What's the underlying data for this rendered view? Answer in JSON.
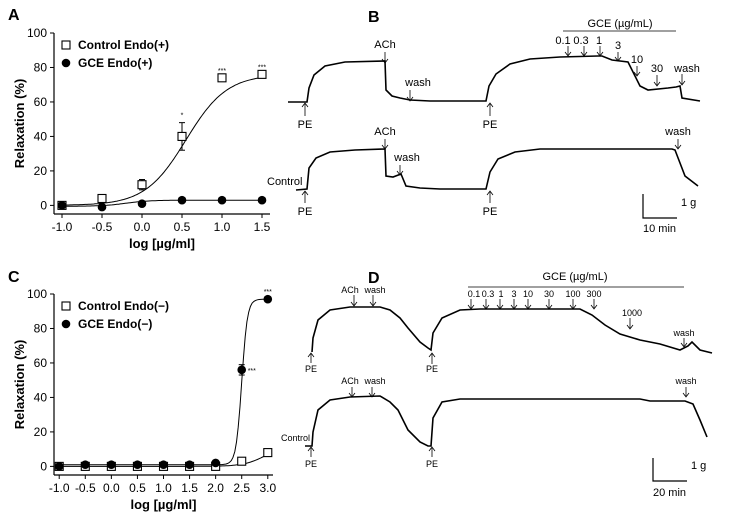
{
  "panel_letters": [
    "A",
    "B",
    "C",
    "D"
  ],
  "chart_data": [
    {
      "type": "scatter",
      "panel": "A",
      "xlabel": "log [µg/ml]",
      "ylabel": "Relaxation (%)",
      "xlim": [
        -1.1,
        1.6
      ],
      "ylim": [
        -5,
        100
      ],
      "xticks": [
        -1.0,
        -0.5,
        0.0,
        0.5,
        1.0,
        1.5
      ],
      "xtick_labels": [
        "-1.0",
        "-0.5",
        "0.0",
        "0.5",
        "1.0",
        "1.5"
      ],
      "yticks": [
        0,
        20,
        40,
        60,
        80,
        100
      ],
      "ytick_labels": [
        "0",
        "20",
        "40",
        "60",
        "80",
        "100"
      ],
      "legend_position": "top-left",
      "series": [
        {
          "name": "Control Endo(+)",
          "marker": "open-square",
          "x": [
            -1.0,
            -0.5,
            0.0,
            0.5,
            1.0,
            1.5
          ],
          "values": [
            0,
            4,
            12,
            40,
            74,
            76
          ],
          "errors": [
            0,
            0,
            3,
            8,
            0,
            0
          ],
          "fit": {
            "bottom": 0,
            "top": 76,
            "ec50": 0.55,
            "hill": 1.7
          },
          "annotations": [
            {
              "x": 0.5,
              "text": "*"
            },
            {
              "x": 1.0,
              "text": "***"
            },
            {
              "x": 1.5,
              "text": "***"
            }
          ]
        },
        {
          "name": "GCE Endo(+)",
          "marker": "filled-circle",
          "x": [
            -1.0,
            -0.5,
            0.0,
            0.5,
            1.0,
            1.5
          ],
          "values": [
            0,
            -1,
            1,
            3,
            3,
            3
          ],
          "errors": [
            0,
            0,
            0,
            0,
            0,
            0
          ],
          "fit": {
            "bottom": -0.5,
            "top": 3,
            "ec50": -0.2,
            "hill": 3
          }
        }
      ]
    },
    {
      "type": "scatter",
      "panel": "C",
      "xlabel": "log [µg/ml]",
      "ylabel": "Relaxation (%)",
      "xlim": [
        -1.1,
        3.1
      ],
      "ylim": [
        -5,
        100
      ],
      "xticks": [
        -1.0,
        -0.5,
        0.0,
        0.5,
        1.0,
        1.5,
        2.0,
        2.5,
        3.0
      ],
      "xtick_labels": [
        "-1.0",
        "-0.5",
        "0.0",
        "0.5",
        "1.0",
        "1.5",
        "2.0",
        "2.5",
        "3.0"
      ],
      "yticks": [
        0,
        20,
        40,
        60,
        80,
        100
      ],
      "ytick_labels": [
        "0",
        "20",
        "40",
        "60",
        "80",
        "100"
      ],
      "legend_position": "top-left",
      "series": [
        {
          "name": "Control Endo(−)",
          "marker": "open-square",
          "x": [
            -1.0,
            -0.5,
            0.0,
            0.5,
            1.0,
            1.5,
            2.0,
            2.5,
            3.0
          ],
          "values": [
            0,
            0,
            0,
            0,
            0,
            0,
            0,
            3,
            8
          ],
          "errors": [
            0,
            0,
            0,
            0,
            0,
            0,
            0,
            0,
            0
          ],
          "fit": {
            "bottom": 0,
            "top": 14,
            "ec50": 3.0,
            "hill": 2
          }
        },
        {
          "name": "GCE Endo(−)",
          "marker": "filled-circle",
          "x": [
            -1.0,
            -0.5,
            0.0,
            0.5,
            1.0,
            1.5,
            2.0,
            2.5,
            3.0
          ],
          "values": [
            0,
            1,
            1,
            1,
            1,
            1,
            2,
            56,
            97
          ],
          "errors": [
            0,
            0,
            0,
            0,
            0,
            0,
            0,
            3,
            0
          ],
          "fit": {
            "bottom": 1,
            "top": 97,
            "ec50": 2.5,
            "hill": 8
          },
          "annotations": [
            {
              "x": 2.5,
              "text": "***"
            },
            {
              "x": 3.0,
              "text": "***"
            }
          ]
        }
      ]
    }
  ],
  "traces": {
    "B": {
      "top_labels": [
        "PE",
        "ACh",
        "wash",
        "PE",
        "0.1",
        "0.3",
        "1",
        "3",
        "10",
        "30",
        "wash"
      ],
      "gce_header": "GCE (µg/mL)",
      "bottom_labels": [
        "Control",
        "PE",
        "ACh",
        "wash",
        "PE",
        "wash"
      ],
      "scale_y": "1 g",
      "scale_x": "10 min"
    },
    "D": {
      "top_labels": [
        "PE",
        "ACh",
        "wash",
        "PE",
        "0.1",
        "0.3",
        "1",
        "3",
        "10",
        "30",
        "100",
        "300",
        "1000",
        "wash"
      ],
      "gce_header": "GCE (µg/mL)",
      "bottom_labels": [
        "Control",
        "PE",
        "ACh",
        "wash",
        "PE",
        "wash"
      ],
      "scale_y": "1 g",
      "scale_x": "20 min"
    }
  }
}
